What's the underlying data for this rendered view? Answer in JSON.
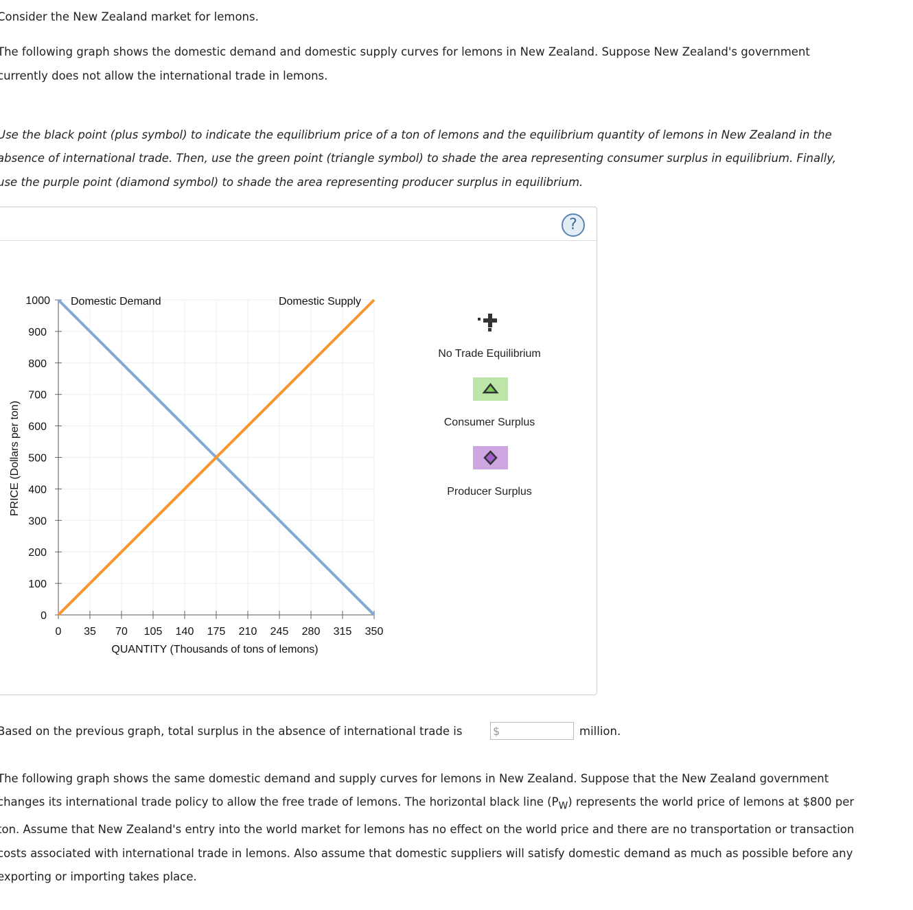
{
  "intro": "Consider the New Zealand market for lemons.",
  "para1": [
    "The following graph shows the domestic demand and domestic supply curves for lemons in New Zealand. Suppose New Zealand's government",
    "currently does not allow the international trade in lemons."
  ],
  "instructions": [
    "Use the black point (plus symbol) to indicate the equilibrium price of a ton of lemons and the equilibrium quantity of lemons in New Zealand in the",
    "absence of international trade. Then, use the green point (triangle symbol) to shade the area representing consumer surplus in equilibrium. Finally,",
    "use the purple point (diamond symbol) to shade the area representing producer surplus in equilibrium."
  ],
  "help_label": "?",
  "legend": {
    "equilibrium": "No Trade Equilibrium",
    "consumer": "Consumer Surplus",
    "producer": "Producer Surplus",
    "consumer_color": "#bde5a8",
    "producer_color": "#cda6e2"
  },
  "chart_data": {
    "type": "line",
    "xlabel": "QUANTITY (Thousands of tons of lemons)",
    "ylabel": "PRICE (Dollars per ton)",
    "xlim": [
      0,
      350
    ],
    "ylim": [
      0,
      1000
    ],
    "grid": true,
    "xticks": [
      "0",
      "35",
      "70",
      "105",
      "140",
      "175",
      "210",
      "245",
      "280",
      "315",
      "350"
    ],
    "yticks": [
      "0",
      "100",
      "200",
      "300",
      "400",
      "500",
      "600",
      "700",
      "800",
      "900",
      "1000"
    ],
    "series": [
      {
        "name": "Domestic Demand",
        "color": "#82a9d4",
        "x": [
          0,
          350
        ],
        "y": [
          1000,
          0
        ]
      },
      {
        "name": "Domestic Supply",
        "color": "#f7962f",
        "x": [
          0,
          350
        ],
        "y": [
          0,
          1000
        ]
      }
    ]
  },
  "question": {
    "before": "Based on the previous graph, total surplus in the absence of international trade is",
    "prefix": "$",
    "value": "",
    "after": "million."
  },
  "para2": [
    "The following graph shows the same domestic demand and supply curves for lemons in New Zealand. Suppose that the New Zealand government",
    "changes its international trade policy to allow the free trade of lemons. The horizontal black line (P",
    "W",
    ") represents the world price of lemons at $800 per",
    "ton. Assume that New Zealand's entry into the world market for lemons has no effect on the world price and there are no transportation or transaction",
    "costs associated with international trade in lemons. Also assume that domestic suppliers will satisfy domestic demand as much as possible before any",
    "exporting or importing takes place."
  ]
}
